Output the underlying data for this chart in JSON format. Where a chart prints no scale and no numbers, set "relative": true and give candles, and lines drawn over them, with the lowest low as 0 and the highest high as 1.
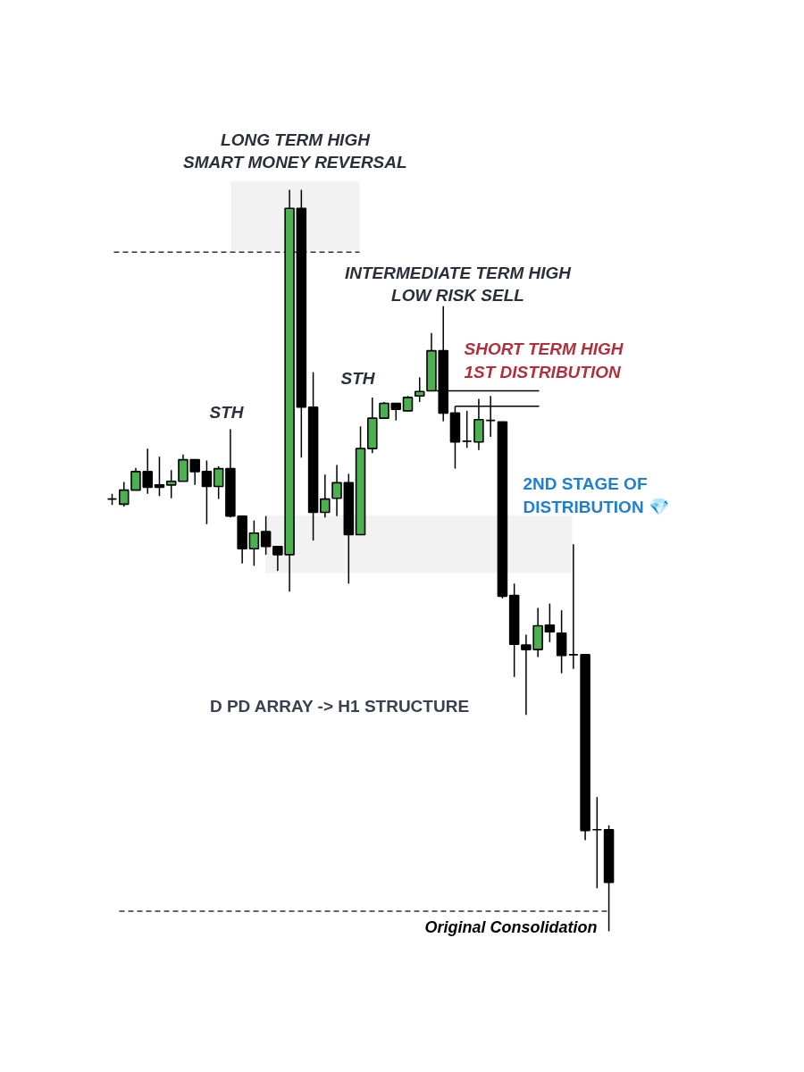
{
  "chart_data": {
    "type": "candlestick",
    "relative": true,
    "categories": [
      null,
      null,
      null,
      null,
      null,
      null,
      null,
      null,
      null,
      null,
      null,
      null,
      null,
      null,
      null,
      null,
      null,
      null,
      null,
      null,
      null,
      null,
      null,
      null,
      null,
      null,
      null,
      null,
      null,
      null,
      null,
      null,
      null,
      null,
      null,
      null,
      null,
      null,
      null,
      null,
      null,
      null,
      null
    ],
    "ohlc": [
      [
        0.583,
        0.59,
        0.575,
        0.583
      ],
      [
        0.576,
        0.606,
        0.573,
        0.595
      ],
      [
        0.595,
        0.625,
        0.595,
        0.62
      ],
      [
        0.62,
        0.651,
        0.59,
        0.599
      ],
      [
        0.602,
        0.64,
        0.587,
        0.599
      ],
      [
        0.602,
        0.622,
        0.584,
        0.607
      ],
      [
        0.607,
        0.643,
        0.607,
        0.636
      ],
      [
        0.636,
        0.636,
        0.602,
        0.62
      ],
      [
        0.62,
        0.635,
        0.549,
        0.6
      ],
      [
        0.6,
        0.627,
        0.583,
        0.624
      ],
      [
        0.624,
        0.677,
        0.558,
        0.56
      ],
      [
        0.56,
        0.56,
        0.496,
        0.516
      ],
      [
        0.516,
        0.554,
        0.493,
        0.537
      ],
      [
        0.539,
        0.56,
        0.508,
        0.519
      ],
      [
        0.519,
        0.52,
        0.486,
        0.508
      ],
      [
        0.508,
        1.0,
        0.458,
        0.975
      ],
      [
        0.975,
        1.0,
        0.639,
        0.707
      ],
      [
        0.707,
        0.754,
        0.527,
        0.565
      ],
      [
        0.565,
        0.616,
        0.558,
        0.583
      ],
      [
        0.584,
        0.629,
        0.56,
        0.605
      ],
      [
        0.605,
        0.617,
        0.469,
        0.535
      ],
      [
        0.535,
        0.681,
        0.535,
        0.651
      ],
      [
        0.651,
        0.72,
        0.645,
        0.692
      ],
      [
        0.692,
        0.714,
        0.692,
        0.712
      ],
      [
        0.712,
        0.712,
        0.689,
        0.704
      ],
      [
        0.702,
        0.722,
        0.701,
        0.72
      ],
      [
        0.722,
        0.747,
        0.714,
        0.728
      ],
      [
        0.729,
        0.807,
        0.729,
        0.783
      ],
      [
        0.783,
        0.843,
        0.688,
        0.699
      ],
      [
        0.699,
        0.708,
        0.624,
        0.66
      ],
      [
        0.661,
        0.702,
        0.652,
        0.661
      ],
      [
        0.66,
        0.718,
        0.649,
        0.69
      ],
      [
        0.689,
        0.722,
        0.667,
        0.689
      ],
      [
        0.687,
        0.687,
        0.449,
        0.452
      ],
      [
        0.453,
        0.469,
        0.343,
        0.387
      ],
      [
        0.386,
        0.4,
        0.292,
        0.38
      ],
      [
        0.38,
        0.436,
        0.37,
        0.412
      ],
      [
        0.413,
        0.442,
        0.39,
        0.404
      ],
      [
        0.402,
        0.433,
        0.348,
        0.372
      ],
      [
        0.373,
        0.522,
        0.354,
        0.373
      ],
      [
        0.373,
        0.373,
        0.123,
        0.136
      ],
      [
        0.137,
        0.181,
        0.058,
        0.137
      ],
      [
        0.137,
        0.143,
        0.0,
        0.066
      ]
    ],
    "colors": [
      "#000000",
      "#4caf50",
      "#4caf50",
      "#000000",
      "#000000",
      "#4caf50",
      "#4caf50",
      "#000000",
      "#000000",
      "#4caf50",
      "#000000",
      "#000000",
      "#4caf50",
      "#000000",
      "#000000",
      "#4caf50",
      "#000000",
      "#000000",
      "#4caf50",
      "#4caf50",
      "#000000",
      "#4caf50",
      "#4caf50",
      "#4caf50",
      "#000000",
      "#4caf50",
      "#4caf50",
      "#4caf50",
      "#000000",
      "#000000",
      "#000000",
      "#4caf50",
      "#000000",
      "#000000",
      "#000000",
      "#000000",
      "#4caf50",
      "#000000",
      "#000000",
      "#000000",
      "#000000",
      "#000000",
      "#000000"
    ],
    "bands": [
      {
        "axis": "y",
        "from": 0.918,
        "to": 1.011,
        "label": "LONG TERM HIGH\nSMART MONEY REVERSAL",
        "color": "#f2f2f2"
      },
      {
        "axis": "y",
        "from": 0.483,
        "to": 0.561,
        "color": "#f2f2f2"
      }
    ],
    "ref_lines": [
      {
        "axis": "y",
        "value": 0.916,
        "line_style": "dashed",
        "color": "#333333"
      },
      {
        "axis": "y",
        "value": 0.027,
        "line_style": "dashed",
        "label": "Original Consolidation",
        "color": "#333333"
      },
      {
        "axis": "y",
        "value": 0.729,
        "line_style": "solid",
        "color": "#000000"
      },
      {
        "axis": "y",
        "value": 0.708,
        "line_style": "solid",
        "color": "#000000"
      }
    ],
    "annotations": [
      "INTERMEDIATE TERM HIGH\nLOW RISK SELL",
      "STH",
      "STH",
      "SHORT TERM HIGH\n1ST DISTRIBUTION",
      "2ND STAGE OF\nDISTRIBUTION 💎",
      "D PD ARRAY -> H1 STRUCTURE"
    ]
  }
}
